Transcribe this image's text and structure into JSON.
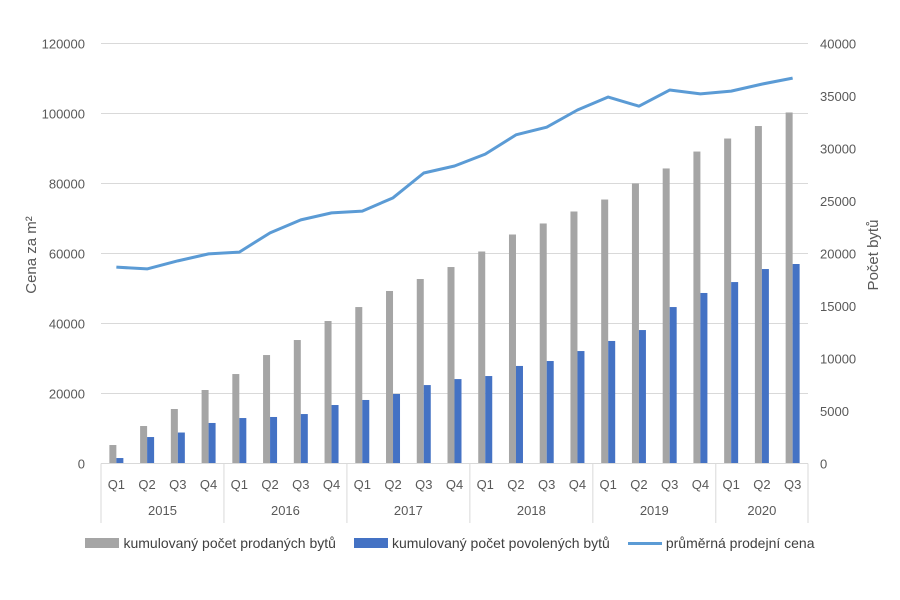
{
  "chart_data": {
    "type": "bar+line",
    "categories": [
      "Q1",
      "Q2",
      "Q3",
      "Q4",
      "Q1",
      "Q2",
      "Q3",
      "Q4",
      "Q1",
      "Q2",
      "Q3",
      "Q4",
      "Q1",
      "Q2",
      "Q3",
      "Q4",
      "Q1",
      "Q2",
      "Q3",
      "Q4",
      "Q1",
      "Q2",
      "Q3"
    ],
    "years": [
      {
        "label": "2015",
        "count": 4
      },
      {
        "label": "2016",
        "count": 4
      },
      {
        "label": "2017",
        "count": 4
      },
      {
        "label": "2018",
        "count": 4
      },
      {
        "label": "2019",
        "count": 4
      },
      {
        "label": "2020",
        "count": 3
      }
    ],
    "ylabel_left": "Cena za m²",
    "ylabel_right": "Počet bytů",
    "ylim_left": [
      0,
      120000
    ],
    "yticks_left": [
      "0",
      "20000",
      "40000",
      "60000",
      "80000",
      "100000",
      "120000"
    ],
    "ylim_right": [
      0,
      40000
    ],
    "yticks_right": [
      "0",
      "5000",
      "10000",
      "15000",
      "20000",
      "25000",
      "30000",
      "35000",
      "40000"
    ],
    "grid": true,
    "legend_position": "bottom",
    "series": [
      {
        "name": "kumulovaný počet prodaných bytů",
        "type": "bar",
        "axis": "right",
        "color": "#a5a5a5",
        "values": [
          1760,
          3570,
          5190,
          7000,
          8520,
          10330,
          11760,
          13570,
          14900,
          16430,
          17570,
          18710,
          20190,
          21810,
          22860,
          24000,
          25140,
          26670,
          28100,
          29710,
          30950,
          32140,
          33430
        ]
      },
      {
        "name": "kumulovaný počet povolených bytů",
        "type": "bar",
        "axis": "right",
        "color": "#4472c4",
        "values": [
          520,
          2520,
          2950,
          3860,
          4330,
          4430,
          4710,
          5570,
          6050,
          6620,
          7470,
          8040,
          8330,
          9290,
          9760,
          10710,
          11670,
          12710,
          14900,
          16240,
          17280,
          18520,
          19000
        ]
      },
      {
        "name": "průměrná prodejní cena",
        "type": "line",
        "axis": "left",
        "color": "#5b9bd5",
        "values": [
          56100,
          55600,
          57900,
          59900,
          60400,
          65900,
          69600,
          71600,
          72100,
          75900,
          83000,
          85000,
          88400,
          93900,
          96100,
          101000,
          104700,
          102100,
          106700,
          105600,
          106400,
          108400,
          110100
        ]
      }
    ]
  }
}
